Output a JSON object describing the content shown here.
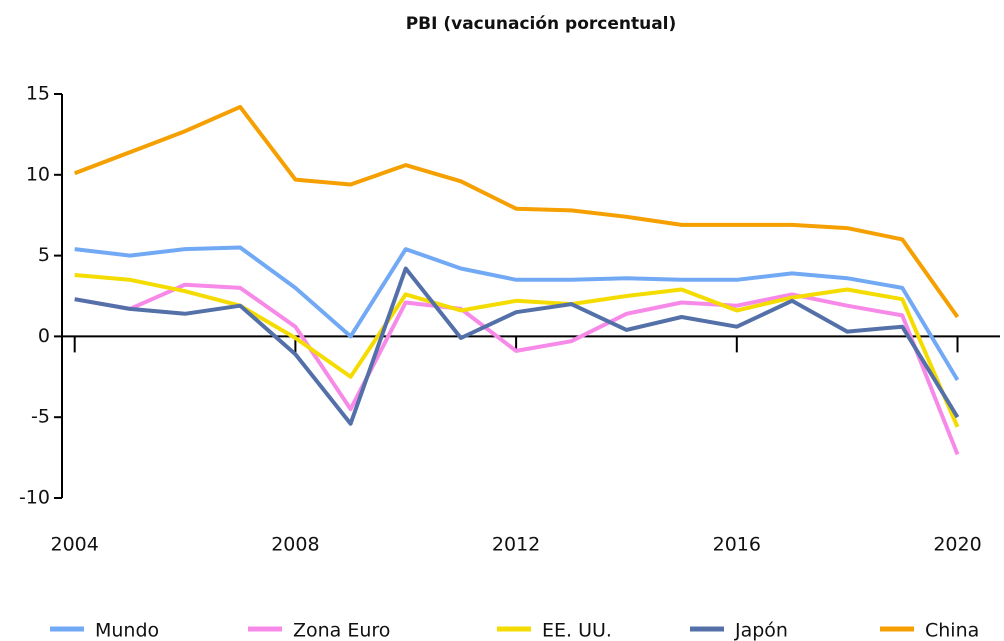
{
  "chart_data": {
    "type": "line",
    "title": "PBI (vacunación porcentual)",
    "x": [
      2004,
      2005,
      2006,
      2007,
      2008,
      2009,
      2010,
      2011,
      2012,
      2013,
      2014,
      2015,
      2016,
      2017,
      2018,
      2019,
      2020
    ],
    "xlim": [
      2003.77,
      2020.77
    ],
    "xticks": [
      2004,
      2008,
      2012,
      2016,
      2020
    ],
    "ylim": [
      -10,
      15
    ],
    "yticks": [
      -10,
      -5,
      0,
      5,
      10,
      15
    ],
    "series": [
      {
        "name": "Mundo",
        "color": "#72a9f5",
        "values": [
          5.4,
          5.0,
          5.4,
          5.5,
          3.0,
          0.0,
          5.4,
          4.2,
          3.5,
          3.5,
          3.6,
          3.5,
          3.5,
          3.9,
          3.6,
          3.0,
          -2.7
        ]
      },
      {
        "name": "Zona Euro",
        "color": "#f78ae8",
        "values": [
          2.3,
          1.7,
          3.2,
          3.0,
          0.6,
          -4.5,
          2.1,
          1.7,
          -0.9,
          -0.3,
          1.4,
          2.1,
          1.9,
          2.6,
          1.9,
          1.3,
          -7.3
        ]
      },
      {
        "name": "EE. UU.",
        "color": "#f5dc00",
        "values": [
          3.8,
          3.5,
          2.8,
          1.9,
          -0.1,
          -2.5,
          2.6,
          1.6,
          2.2,
          2.0,
          2.5,
          2.9,
          1.6,
          2.4,
          2.9,
          2.3,
          -5.6
        ]
      },
      {
        "name": "Japón",
        "color": "#5470a8",
        "values": [
          2.3,
          1.7,
          1.4,
          1.9,
          -1.1,
          -5.4,
          4.2,
          -0.1,
          1.5,
          2.0,
          0.4,
          1.2,
          0.6,
          2.2,
          0.3,
          0.6,
          -5.0
        ]
      },
      {
        "name": "China",
        "color": "#f5a000",
        "values": [
          10.1,
          11.4,
          12.7,
          14.2,
          9.7,
          9.4,
          10.6,
          9.6,
          7.9,
          7.8,
          7.4,
          6.9,
          6.9,
          6.9,
          6.7,
          6.0,
          1.2
        ]
      }
    ]
  }
}
